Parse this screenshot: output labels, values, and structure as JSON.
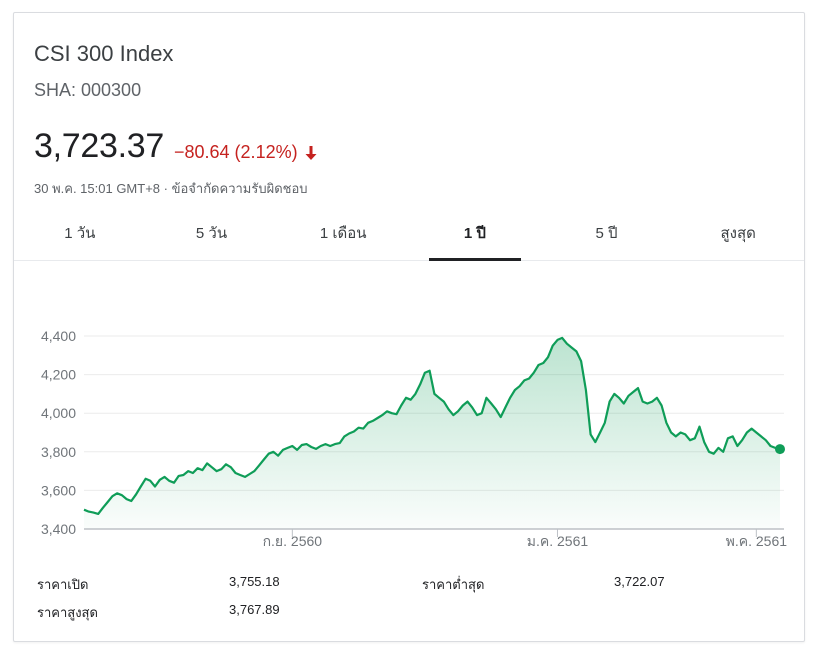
{
  "stock": {
    "name": "CSI 300 Index",
    "ticker": "SHA: 000300",
    "price": "3,723.37",
    "change": "−80.64 (2.12%)",
    "change_color": "#c5221f",
    "timestamp": "30 พ.ค. 15:01 GMT+8 · ",
    "disclaimer": "ข้อจำกัดความรับผิดชอบ"
  },
  "tabs": [
    {
      "label": "1 วัน"
    },
    {
      "label": "5 วัน"
    },
    {
      "label": "1 เดือน"
    },
    {
      "label": "1 ปี"
    },
    {
      "label": "5 ปี"
    },
    {
      "label": "สูงสุด"
    }
  ],
  "active_tab": "1 ปี",
  "stats": {
    "open_label": "ราคาเปิด",
    "open_value": "3,755.18",
    "low_label": "ราคาต่ำสุด",
    "low_value": "3,722.07",
    "high_label": "ราคาสูงสุด",
    "high_value": "3,767.89"
  },
  "chart_data": {
    "type": "area",
    "series": [
      {
        "values": [
          3500,
          3490,
          3485,
          3478,
          3510,
          3540,
          3570,
          3585,
          3575,
          3555,
          3545,
          3580,
          3620,
          3660,
          3650,
          3620,
          3655,
          3670,
          3650,
          3640,
          3675,
          3680,
          3700,
          3690,
          3715,
          3705,
          3740,
          3720,
          3700,
          3710,
          3735,
          3720,
          3690,
          3680,
          3670,
          3685,
          3700,
          3730,
          3760,
          3790,
          3800,
          3780,
          3810,
          3820,
          3830,
          3810,
          3835,
          3840,
          3825,
          3815,
          3830,
          3840,
          3830,
          3840,
          3845,
          3880,
          3895,
          3905,
          3925,
          3920,
          3950,
          3960,
          3975,
          3990,
          4010,
          4000,
          3995,
          4040,
          4080,
          4070,
          4100,
          4150,
          4210,
          4220,
          4100,
          4080,
          4060,
          4020,
          3990,
          4010,
          4040,
          4060,
          4030,
          3990,
          4000,
          4080,
          4050,
          4020,
          3980,
          4030,
          4080,
          4120,
          4140,
          4170,
          4180,
          4210,
          4250,
          4260,
          4290,
          4350,
          4380,
          4390,
          4360,
          4340,
          4320,
          4270,
          4120,
          3890,
          3850,
          3900,
          3950,
          4060,
          4100,
          4080,
          4050,
          4090,
          4110,
          4130,
          4060,
          4050,
          4060,
          4080,
          4040,
          3950,
          3900,
          3880,
          3900,
          3890,
          3860,
          3870,
          3930,
          3850,
          3800,
          3790,
          3820,
          3800,
          3870,
          3880,
          3830,
          3860,
          3900,
          3920,
          3900,
          3880,
          3860,
          3830,
          3820,
          3814
        ],
        "color": "#0f9d58"
      }
    ],
    "x_tick_labels": [
      "ก.ย. 2560",
      "ม.ค. 2561",
      "พ.ค. 2561"
    ],
    "x_tick_index": [
      44,
      100,
      142
    ],
    "y_ticks": [
      3400,
      3600,
      3800,
      4000,
      4200,
      4400
    ],
    "y_tick_labels": [
      "3,400",
      "3,600",
      "3,800",
      "4,000",
      "4,200",
      "4,400"
    ],
    "ylim": [
      3400,
      4400
    ],
    "grid": true,
    "legend": "none"
  }
}
